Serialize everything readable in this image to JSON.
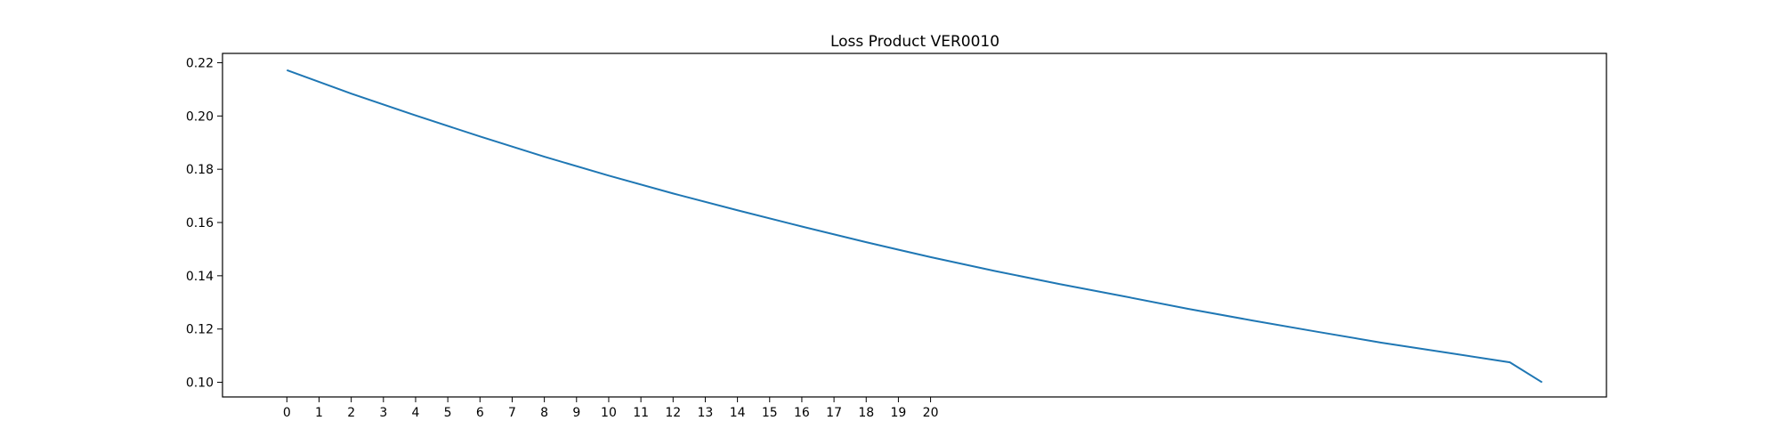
{
  "chart_data": {
    "type": "line",
    "title": "Loss Product VER0010",
    "xlabel": "",
    "ylabel": "",
    "x_ticks": [
      "0",
      "1",
      "2",
      "3",
      "4",
      "5",
      "6",
      "7",
      "8",
      "9",
      "10",
      "11",
      "12",
      "13",
      "14",
      "15",
      "16",
      "17",
      "18",
      "19",
      "20"
    ],
    "x_range": [
      -2,
      41
    ],
    "ylim": [
      0.0945,
      0.2235
    ],
    "y_ticks": [
      0.1,
      0.12,
      0.14,
      0.16,
      0.18,
      0.2,
      0.22
    ],
    "grid": false,
    "legend": "none",
    "series": [
      {
        "color": "#1f77b4",
        "x": [
          0,
          2,
          4,
          6,
          8,
          10,
          12,
          14,
          16,
          18,
          20,
          22,
          24,
          26,
          28,
          30,
          32,
          34,
          36,
          38,
          39
        ],
        "y": [
          0.2172,
          0.2084,
          0.2002,
          0.1923,
          0.1847,
          0.1776,
          0.1709,
          0.1646,
          0.1585,
          0.1526,
          0.147,
          0.1418,
          0.1369,
          0.1323,
          0.1276,
          0.1232,
          0.119,
          0.1149,
          0.1112,
          0.1075,
          0.1
        ]
      }
    ]
  }
}
